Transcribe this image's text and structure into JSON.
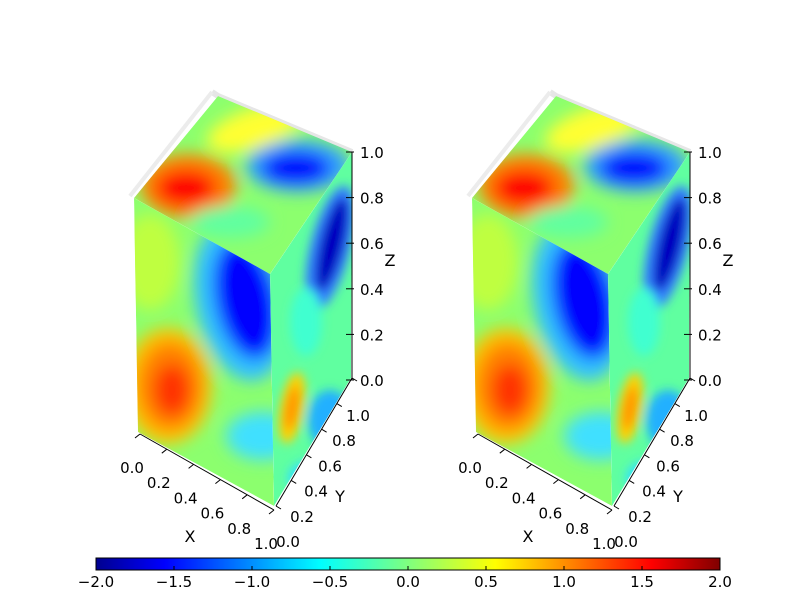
{
  "chart_data": {
    "type": "heatmap",
    "subtype": "3d-volume-faces",
    "colormap": "jet",
    "panels": [
      {
        "axes": {
          "x": {
            "label": "X",
            "ticks": [
              "0.0",
              "0.2",
              "0.4",
              "0.6",
              "0.8",
              "1.0"
            ],
            "range": [
              0,
              1
            ]
          },
          "y": {
            "label": "Y",
            "ticks": [
              "0.0",
              "0.2",
              "0.4",
              "0.6",
              "0.8",
              "1.0"
            ],
            "range": [
              0,
              1
            ]
          },
          "z": {
            "label": "Z",
            "ticks": [
              "0.0",
              "0.2",
              "0.4",
              "0.6",
              "0.8",
              "1.0"
            ],
            "range": [
              0,
              1
            ]
          }
        }
      },
      {
        "axes": {
          "x": {
            "label": "X",
            "ticks": [
              "0.0",
              "0.2",
              "0.4",
              "0.6",
              "0.8",
              "1.0"
            ],
            "range": [
              0,
              1
            ]
          },
          "y": {
            "label": "Y",
            "ticks": [
              "0.0",
              "0.2",
              "0.4",
              "0.6",
              "0.8",
              "1.0"
            ],
            "range": [
              0,
              1
            ]
          },
          "z": {
            "label": "Z",
            "ticks": [
              "0.0",
              "0.2",
              "0.4",
              "0.6",
              "0.8",
              "1.0"
            ],
            "range": [
              0,
              1
            ]
          }
        }
      }
    ],
    "colorbar": {
      "range": [
        -2.0,
        2.0
      ],
      "ticks": [
        "−2.0",
        "−1.5",
        "−1.0",
        "−0.5",
        "0.0",
        "0.5",
        "1.0",
        "1.5",
        "2.0"
      ]
    },
    "colors": {
      "dark_blue": "#00008f",
      "blue": "#0000ff",
      "cyan": "#00ffff",
      "green": "#7fff7f",
      "yellow": "#ffff00",
      "orange": "#ff8000",
      "red": "#ff0000",
      "dark_red": "#800000"
    }
  }
}
